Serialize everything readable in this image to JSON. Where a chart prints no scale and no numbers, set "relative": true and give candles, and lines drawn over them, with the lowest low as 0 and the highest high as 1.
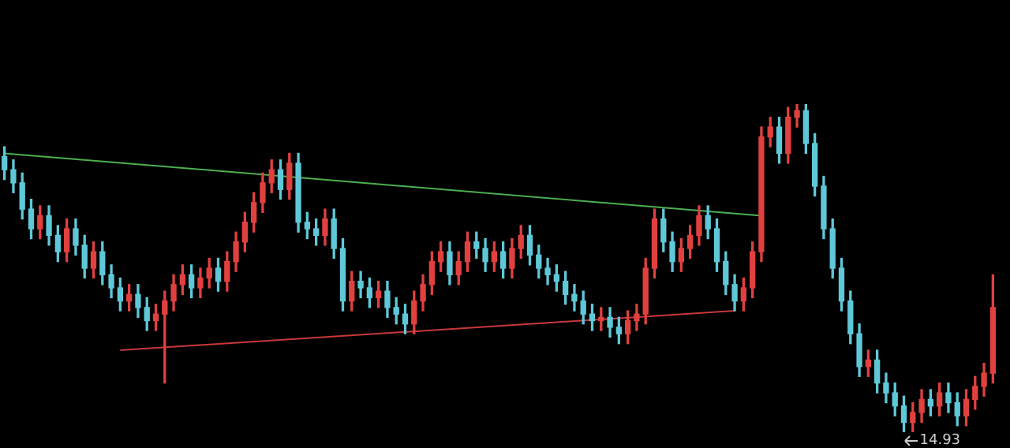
{
  "chart_data": {
    "type": "candlestick",
    "relative": true,
    "categories": [
      null,
      null,
      null,
      null,
      null,
      null,
      null,
      null,
      null,
      null,
      null,
      null,
      null,
      null,
      null,
      null,
      null,
      null,
      null,
      null,
      null,
      null,
      null,
      null,
      null,
      null,
      null,
      null,
      null,
      null,
      null,
      null,
      null,
      null,
      null,
      null,
      null,
      null,
      null,
      null,
      null,
      null,
      null,
      null,
      null,
      null,
      null,
      null,
      null,
      null,
      null,
      null,
      null,
      null,
      null,
      null,
      null,
      null,
      null,
      null,
      null,
      null,
      null,
      null,
      null,
      null,
      null,
      null,
      null,
      null,
      null,
      null,
      null,
      null,
      null,
      null,
      null,
      null,
      null,
      null,
      null,
      null,
      null,
      null,
      null,
      null,
      null,
      null,
      null,
      null,
      null,
      null,
      null,
      null,
      null,
      null,
      null,
      null,
      null,
      null,
      null,
      null,
      null,
      null,
      null,
      null,
      null,
      null,
      null,
      null,
      null,
      null
    ],
    "ohlc": [
      [
        0.84,
        0.87,
        0.77,
        0.8
      ],
      [
        0.8,
        0.83,
        0.73,
        0.76
      ],
      [
        0.76,
        0.79,
        0.65,
        0.68
      ],
      [
        0.68,
        0.71,
        0.59,
        0.62
      ],
      [
        0.62,
        0.69,
        0.59,
        0.66
      ],
      [
        0.66,
        0.69,
        0.57,
        0.6
      ],
      [
        0.6,
        0.63,
        0.52,
        0.55
      ],
      [
        0.55,
        0.65,
        0.52,
        0.62
      ],
      [
        0.62,
        0.65,
        0.54,
        0.57
      ],
      [
        0.57,
        0.6,
        0.47,
        0.5
      ],
      [
        0.5,
        0.58,
        0.47,
        0.55
      ],
      [
        0.55,
        0.58,
        0.45,
        0.48
      ],
      [
        0.48,
        0.51,
        0.41,
        0.44
      ],
      [
        0.44,
        0.47,
        0.37,
        0.4
      ],
      [
        0.4,
        0.45,
        0.37,
        0.42
      ],
      [
        0.42,
        0.45,
        0.35,
        0.38
      ],
      [
        0.38,
        0.41,
        0.31,
        0.34
      ],
      [
        0.34,
        0.39,
        0.31,
        0.36
      ],
      [
        0.36,
        0.43,
        0.15,
        0.4
      ],
      [
        0.4,
        0.48,
        0.37,
        0.45
      ],
      [
        0.45,
        0.51,
        0.42,
        0.48
      ],
      [
        0.48,
        0.51,
        0.41,
        0.44
      ],
      [
        0.44,
        0.5,
        0.41,
        0.47
      ],
      [
        0.47,
        0.53,
        0.44,
        0.5
      ],
      [
        0.5,
        0.53,
        0.43,
        0.46
      ],
      [
        0.46,
        0.55,
        0.43,
        0.52
      ],
      [
        0.52,
        0.61,
        0.49,
        0.58
      ],
      [
        0.58,
        0.67,
        0.55,
        0.64
      ],
      [
        0.64,
        0.73,
        0.61,
        0.7
      ],
      [
        0.7,
        0.79,
        0.67,
        0.76
      ],
      [
        0.76,
        0.83,
        0.73,
        0.8
      ],
      [
        0.8,
        0.83,
        0.71,
        0.74
      ],
      [
        0.74,
        0.85,
        0.71,
        0.82
      ],
      [
        0.82,
        0.85,
        0.61,
        0.64
      ],
      [
        0.64,
        0.67,
        0.59,
        0.62
      ],
      [
        0.62,
        0.65,
        0.57,
        0.6
      ],
      [
        0.6,
        0.68,
        0.57,
        0.65
      ],
      [
        0.65,
        0.68,
        0.53,
        0.56
      ],
      [
        0.56,
        0.59,
        0.37,
        0.4
      ],
      [
        0.4,
        0.49,
        0.37,
        0.46
      ],
      [
        0.46,
        0.49,
        0.41,
        0.44
      ],
      [
        0.44,
        0.47,
        0.38,
        0.41
      ],
      [
        0.41,
        0.46,
        0.38,
        0.43
      ],
      [
        0.43,
        0.46,
        0.35,
        0.38
      ],
      [
        0.38,
        0.41,
        0.33,
        0.36
      ],
      [
        0.36,
        0.39,
        0.3,
        0.33
      ],
      [
        0.33,
        0.43,
        0.3,
        0.4
      ],
      [
        0.4,
        0.48,
        0.37,
        0.45
      ],
      [
        0.45,
        0.55,
        0.42,
        0.52
      ],
      [
        0.52,
        0.58,
        0.49,
        0.55
      ],
      [
        0.55,
        0.58,
        0.45,
        0.48
      ],
      [
        0.48,
        0.55,
        0.45,
        0.52
      ],
      [
        0.52,
        0.61,
        0.49,
        0.58
      ],
      [
        0.58,
        0.61,
        0.53,
        0.56
      ],
      [
        0.56,
        0.59,
        0.49,
        0.52
      ],
      [
        0.52,
        0.58,
        0.49,
        0.55
      ],
      [
        0.55,
        0.58,
        0.47,
        0.5
      ],
      [
        0.5,
        0.59,
        0.47,
        0.56
      ],
      [
        0.56,
        0.63,
        0.53,
        0.6
      ],
      [
        0.6,
        0.63,
        0.51,
        0.54
      ],
      [
        0.54,
        0.57,
        0.47,
        0.5
      ],
      [
        0.5,
        0.53,
        0.45,
        0.48
      ],
      [
        0.48,
        0.51,
        0.43,
        0.46
      ],
      [
        0.46,
        0.49,
        0.39,
        0.42
      ],
      [
        0.42,
        0.45,
        0.37,
        0.4
      ],
      [
        0.4,
        0.43,
        0.33,
        0.36
      ],
      [
        0.36,
        0.39,
        0.31,
        0.34
      ],
      [
        0.34,
        0.38,
        0.31,
        0.35
      ],
      [
        0.35,
        0.38,
        0.29,
        0.32
      ],
      [
        0.32,
        0.35,
        0.27,
        0.3
      ],
      [
        0.3,
        0.37,
        0.27,
        0.34
      ],
      [
        0.34,
        0.39,
        0.31,
        0.36
      ],
      [
        0.36,
        0.53,
        0.33,
        0.5
      ],
      [
        0.5,
        0.68,
        0.47,
        0.65
      ],
      [
        0.65,
        0.68,
        0.55,
        0.58
      ],
      [
        0.58,
        0.61,
        0.49,
        0.52
      ],
      [
        0.52,
        0.59,
        0.49,
        0.56
      ],
      [
        0.56,
        0.63,
        0.53,
        0.6
      ],
      [
        0.6,
        0.69,
        0.57,
        0.66
      ],
      [
        0.66,
        0.69,
        0.59,
        0.62
      ],
      [
        0.62,
        0.65,
        0.49,
        0.52
      ],
      [
        0.52,
        0.55,
        0.42,
        0.45
      ],
      [
        0.45,
        0.48,
        0.37,
        0.4
      ],
      [
        0.4,
        0.47,
        0.37,
        0.44
      ],
      [
        0.44,
        0.58,
        0.41,
        0.55
      ],
      [
        0.55,
        0.93,
        0.52,
        0.9
      ],
      [
        0.9,
        0.96,
        0.87,
        0.93
      ],
      [
        0.93,
        0.96,
        0.82,
        0.85
      ],
      [
        0.85,
        0.99,
        0.82,
        0.96
      ],
      [
        0.96,
        1.0,
        0.93,
        0.98
      ],
      [
        0.98,
        1.0,
        0.85,
        0.88
      ],
      [
        0.88,
        0.91,
        0.72,
        0.75
      ],
      [
        0.75,
        0.78,
        0.59,
        0.62
      ],
      [
        0.62,
        0.65,
        0.47,
        0.5
      ],
      [
        0.5,
        0.53,
        0.37,
        0.4
      ],
      [
        0.4,
        0.43,
        0.27,
        0.3
      ],
      [
        0.3,
        0.33,
        0.17,
        0.2
      ],
      [
        0.2,
        0.25,
        0.17,
        0.22
      ],
      [
        0.22,
        0.25,
        0.12,
        0.15
      ],
      [
        0.15,
        0.18,
        0.09,
        0.12
      ],
      [
        0.12,
        0.15,
        0.05,
        0.08
      ],
      [
        0.08,
        0.11,
        0.0,
        0.03
      ],
      [
        0.03,
        0.09,
        0.0,
        0.06
      ],
      [
        0.06,
        0.13,
        0.03,
        0.1
      ],
      [
        0.1,
        0.13,
        0.05,
        0.08
      ],
      [
        0.08,
        0.15,
        0.05,
        0.12
      ],
      [
        0.12,
        0.15,
        0.06,
        0.09
      ],
      [
        0.09,
        0.12,
        0.02,
        0.05
      ],
      [
        0.05,
        0.13,
        0.02,
        0.1
      ],
      [
        0.1,
        0.17,
        0.07,
        0.14
      ],
      [
        0.14,
        0.21,
        0.11,
        0.18
      ],
      [
        0.18,
        0.48,
        0.15,
        0.38
      ]
    ],
    "series": [
      {
        "type": "line",
        "color": "#4caf50",
        "values": [
          0.85,
          null,
          null,
          null,
          null,
          null,
          null,
          null,
          null,
          null,
          null,
          null,
          null,
          null,
          null,
          null,
          null,
          null,
          null,
          null,
          null,
          null,
          null,
          null,
          null,
          null,
          null,
          null,
          null,
          null,
          null,
          null,
          null,
          null,
          null,
          null,
          null,
          null,
          null,
          null,
          null,
          null,
          null,
          null,
          null,
          null,
          null,
          null,
          null,
          null,
          null,
          null,
          null,
          null,
          null,
          null,
          null,
          null,
          null,
          null,
          null,
          null,
          null,
          null,
          null,
          null,
          null,
          null,
          null,
          null,
          null,
          null,
          null,
          null,
          null,
          null,
          null,
          null,
          null,
          null,
          null,
          null,
          null,
          null,
          null,
          0.66,
          null,
          null,
          null,
          null,
          null,
          null,
          null,
          null,
          null,
          null,
          null,
          null,
          null,
          null,
          null,
          null,
          null,
          null,
          null,
          null,
          null,
          null,
          null,
          null,
          null,
          null
        ]
      },
      {
        "type": "line",
        "color": "#c8383a",
        "values": [
          null,
          null,
          null,
          null,
          null,
          null,
          null,
          null,
          null,
          null,
          null,
          null,
          null,
          0.25,
          null,
          null,
          null,
          null,
          null,
          null,
          null,
          null,
          null,
          null,
          null,
          null,
          null,
          null,
          null,
          null,
          null,
          null,
          null,
          null,
          null,
          null,
          null,
          null,
          null,
          null,
          null,
          null,
          null,
          null,
          null,
          null,
          null,
          null,
          null,
          null,
          null,
          null,
          null,
          null,
          null,
          null,
          null,
          null,
          null,
          null,
          null,
          null,
          null,
          null,
          null,
          null,
          null,
          null,
          null,
          null,
          null,
          null,
          null,
          null,
          null,
          null,
          null,
          null,
          null,
          null,
          null,
          null,
          0.37,
          null,
          null,
          null,
          null,
          null,
          null,
          null,
          null,
          null,
          null,
          null,
          null,
          null,
          null,
          null,
          null,
          null,
          null,
          null,
          null,
          null,
          null,
          null,
          null,
          null,
          null,
          null,
          null,
          null
        ]
      }
    ],
    "annotations": [
      "14.93"
    ]
  }
}
